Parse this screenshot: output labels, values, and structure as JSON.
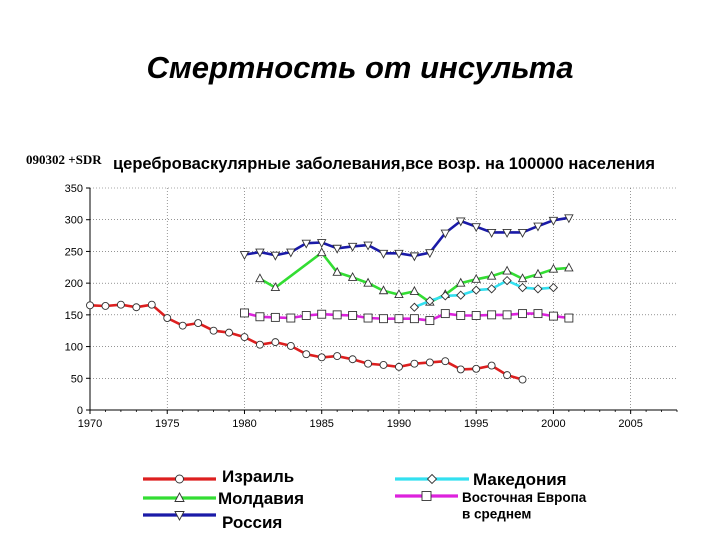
{
  "slide": {
    "title": "Смертность от инсульта",
    "chart_code": "090302 +SDR",
    "chart_subtitle": "цереброваскулярные заболевания,все возр. на 100000 населения"
  },
  "colors": {
    "israel": "#dd1f1f",
    "moldova": "#33dd33",
    "russia": "#1a1aa8",
    "macedonia": "#33e0f0",
    "eastern_europe": "#dd22dd"
  },
  "chart_data": {
    "type": "line",
    "title": "цереброваскулярные заболевания,все возр. на 100000 населения",
    "xlabel": "",
    "ylabel": "",
    "xlim": [
      1970,
      2008
    ],
    "ylim": [
      0,
      350
    ],
    "x_ticks": [
      1970,
      1975,
      1980,
      1985,
      1990,
      1995,
      2000,
      2005
    ],
    "y_ticks": [
      0,
      50,
      100,
      150,
      200,
      250,
      300,
      350
    ],
    "grid": true,
    "legend_position": "bottom",
    "series": [
      {
        "name": "Израиль",
        "color_key": "israel",
        "marker": "circle",
        "points": [
          [
            1970,
            165
          ],
          [
            1971,
            164
          ],
          [
            1972,
            166
          ],
          [
            1973,
            162
          ],
          [
            1974,
            166
          ],
          [
            1975,
            145
          ],
          [
            1976,
            133
          ],
          [
            1977,
            137
          ],
          [
            1978,
            125
          ],
          [
            1979,
            122
          ],
          [
            1980,
            115
          ],
          [
            1981,
            103
          ],
          [
            1982,
            107
          ],
          [
            1983,
            101
          ],
          [
            1984,
            88
          ],
          [
            1985,
            83
          ],
          [
            1986,
            85
          ],
          [
            1987,
            80
          ],
          [
            1988,
            73
          ],
          [
            1989,
            71
          ],
          [
            1990,
            68
          ],
          [
            1991,
            73
          ],
          [
            1992,
            75
          ],
          [
            1993,
            77
          ],
          [
            1994,
            64
          ],
          [
            1995,
            65
          ],
          [
            1996,
            70
          ],
          [
            1997,
            55
          ],
          [
            1998,
            48
          ]
        ]
      },
      {
        "name": "Молдавия",
        "color_key": "moldova",
        "marker": "triangle-up",
        "points": [
          [
            1981,
            207
          ],
          [
            1982,
            193
          ],
          [
            1985,
            248
          ],
          [
            1986,
            217
          ],
          [
            1987,
            209
          ],
          [
            1988,
            200
          ],
          [
            1989,
            188
          ],
          [
            1990,
            182
          ],
          [
            1991,
            187
          ],
          [
            1992,
            170
          ],
          [
            1993,
            182
          ],
          [
            1994,
            200
          ],
          [
            1995,
            206
          ],
          [
            1996,
            211
          ],
          [
            1997,
            219
          ],
          [
            1998,
            207
          ],
          [
            1999,
            214
          ],
          [
            2000,
            222
          ],
          [
            2001,
            224
          ]
        ]
      },
      {
        "name": "Россия",
        "color_key": "russia",
        "marker": "triangle-down",
        "points": [
          [
            1980,
            245
          ],
          [
            1981,
            249
          ],
          [
            1982,
            244
          ],
          [
            1983,
            249
          ],
          [
            1984,
            263
          ],
          [
            1985,
            264
          ],
          [
            1986,
            255
          ],
          [
            1987,
            258
          ],
          [
            1988,
            260
          ],
          [
            1989,
            247
          ],
          [
            1990,
            247
          ],
          [
            1991,
            243
          ],
          [
            1992,
            248
          ],
          [
            1993,
            279
          ],
          [
            1994,
            298
          ],
          [
            1995,
            289
          ],
          [
            1996,
            280
          ],
          [
            1997,
            280
          ],
          [
            1998,
            280
          ],
          [
            1999,
            290
          ],
          [
            2000,
            299
          ],
          [
            2001,
            303
          ]
        ]
      },
      {
        "name": "Македония",
        "color_key": "macedonia",
        "marker": "diamond",
        "points": [
          [
            1991,
            162
          ],
          [
            1992,
            172
          ],
          [
            1993,
            180
          ],
          [
            1994,
            181
          ],
          [
            1995,
            189
          ],
          [
            1996,
            191
          ],
          [
            1997,
            204
          ],
          [
            1998,
            193
          ],
          [
            1999,
            191
          ],
          [
            2000,
            193
          ]
        ]
      },
      {
        "name": "Восточная Европа в среднем",
        "color_key": "eastern_europe",
        "marker": "square",
        "points": [
          [
            1980,
            153
          ],
          [
            1981,
            147
          ],
          [
            1982,
            146
          ],
          [
            1983,
            145
          ],
          [
            1984,
            149
          ],
          [
            1985,
            151
          ],
          [
            1986,
            150
          ],
          [
            1987,
            149
          ],
          [
            1988,
            145
          ],
          [
            1989,
            144
          ],
          [
            1990,
            144
          ],
          [
            1991,
            144
          ],
          [
            1992,
            141
          ],
          [
            1993,
            152
          ],
          [
            1994,
            149
          ],
          [
            1995,
            149
          ],
          [
            1996,
            150
          ],
          [
            1997,
            150
          ],
          [
            1998,
            152
          ],
          [
            1999,
            152
          ],
          [
            2000,
            148
          ],
          [
            2001,
            145
          ]
        ]
      }
    ]
  },
  "legend": [
    {
      "label_lines": [
        "Израиль"
      ],
      "color_key": "israel",
      "marker": "circle"
    },
    {
      "label_lines": [
        "Молдавия"
      ],
      "color_key": "moldova",
      "marker": "triangle-up"
    },
    {
      "label_lines": [
        "Россия"
      ],
      "color_key": "russia",
      "marker": "triangle-down"
    },
    {
      "label_lines": [
        "Македония"
      ],
      "color_key": "macedonia",
      "marker": "diamond"
    },
    {
      "label_lines": [
        "Восточная Европа",
        "в среднем"
      ],
      "color_key": "eastern_europe",
      "marker": "square"
    }
  ]
}
